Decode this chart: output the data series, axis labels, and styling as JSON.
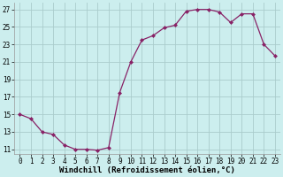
{
  "x": [
    0,
    1,
    2,
    3,
    4,
    5,
    6,
    7,
    8,
    9,
    10,
    11,
    12,
    13,
    14,
    15,
    16,
    17,
    18,
    19,
    20,
    21,
    22,
    23
  ],
  "y": [
    15,
    14.5,
    13,
    12.7,
    11.5,
    11,
    11,
    10.9,
    11.2,
    17.5,
    21,
    23.5,
    24,
    24.9,
    25.2,
    26.8,
    27,
    27,
    26.7,
    25.5,
    26.5,
    26.5,
    23,
    21.7
  ],
  "line_color": "#882266",
  "marker": "D",
  "marker_size": 2.0,
  "bg_color": "#cceeee",
  "grid_color": "#aacccc",
  "xlabel": "Windchill (Refroidissement éolien,°C)",
  "xlabel_fontsize": 6.5,
  "yticks": [
    11,
    13,
    15,
    17,
    19,
    21,
    23,
    25,
    27
  ],
  "xticks": [
    0,
    1,
    2,
    3,
    4,
    5,
    6,
    7,
    8,
    9,
    10,
    11,
    12,
    13,
    14,
    15,
    16,
    17,
    18,
    19,
    20,
    21,
    22,
    23
  ],
  "ylim": [
    10.5,
    27.8
  ],
  "xlim": [
    -0.5,
    23.5
  ],
  "tick_fontsize": 5.5,
  "linewidth": 0.9
}
